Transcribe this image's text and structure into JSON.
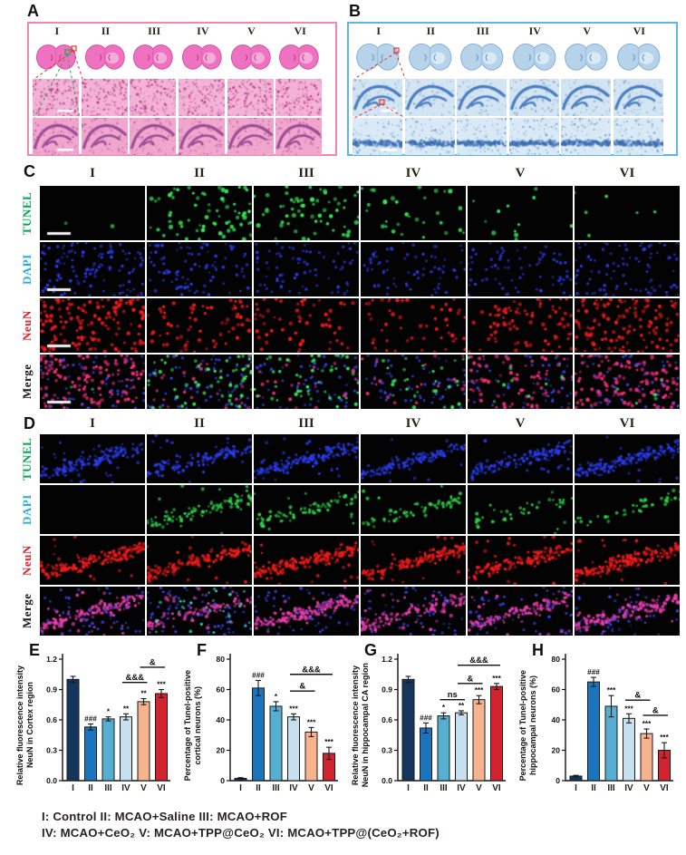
{
  "panels": {
    "a": {
      "label": "A",
      "columns": [
        "I",
        "II",
        "III",
        "IV",
        "V",
        "VI"
      ]
    },
    "b": {
      "label": "B",
      "columns": [
        "I",
        "II",
        "III",
        "IV",
        "V",
        "VI"
      ]
    },
    "c": {
      "label": "C",
      "columns": [
        "I",
        "II",
        "III",
        "IV",
        "V",
        "VI"
      ],
      "rows": [
        {
          "label": "TUNEL",
          "label_color": "#00A651",
          "layers": [
            {
              "color": "#38e65a",
              "pattern": "scatter",
              "rmin": 1.4,
              "rmax": 2.6,
              "counts": [
                2,
                70,
                60,
                30,
                12,
                6
              ]
            }
          ]
        },
        {
          "label": "DAPI",
          "label_color": "#29ABE2",
          "layers": [
            {
              "color": "#2a3cf0",
              "pattern": "scatter",
              "rmin": 1.1,
              "rmax": 2.0,
              "counts": [
                120,
                90,
                75,
                70,
                75,
                90
              ]
            }
          ]
        },
        {
          "label": "NeuN",
          "label_color": "#ED1C24",
          "layers": [
            {
              "color": "#f21b1b",
              "pattern": "scatter",
              "rmin": 1.4,
              "rmax": 2.4,
              "counts": [
                140,
                70,
                55,
                50,
                85,
                130
              ]
            }
          ]
        },
        {
          "label": "Merge",
          "label_color": "#1a1a1a",
          "layers": [
            {
              "color": "#f0307c",
              "pattern": "scatter",
              "rmin": 1.4,
              "rmax": 2.4,
              "counts": [
                130,
                25,
                20,
                18,
                75,
                120
              ]
            },
            {
              "color": "#3a46f5",
              "pattern": "scatter",
              "rmin": 1.1,
              "rmax": 1.9,
              "counts": [
                50,
                70,
                60,
                55,
                50,
                45
              ]
            },
            {
              "color": "#38e65a",
              "pattern": "scatter",
              "rmin": 1.3,
              "rmax": 2.2,
              "counts": [
                2,
                55,
                48,
                28,
                10,
                5
              ]
            }
          ]
        }
      ]
    },
    "d": {
      "label": "D",
      "columns": [
        "I",
        "II",
        "III",
        "IV",
        "V",
        "VI"
      ],
      "rows": [
        {
          "label": "TUNEL",
          "label_color": "#00A651",
          "layers": [
            {
              "color": "#2a3cf0",
              "pattern": "band",
              "rmin": 1.1,
              "rmax": 2.0,
              "counts": [
                160,
                130,
                170,
                130,
                140,
                170
              ]
            }
          ]
        },
        {
          "label": "DAPI",
          "label_color": "#29ABE2",
          "layers": [
            {
              "color": "#2fd24a",
              "pattern": "band",
              "rmin": 1.2,
              "rmax": 2.2,
              "counts": [
                0,
                100,
                80,
                65,
                45,
                40
              ]
            }
          ]
        },
        {
          "label": "NeuN",
          "label_color": "#ED1C24",
          "layers": [
            {
              "color": "#f21b1b",
              "pattern": "band",
              "rmin": 1.2,
              "rmax": 2.2,
              "counts": [
                170,
                140,
                170,
                140,
                140,
                170
              ]
            }
          ]
        },
        {
          "label": "Merge",
          "label_color": "#1a1a1a",
          "layers": [
            {
              "color": "#e93fb0",
              "pattern": "band",
              "rmin": 1.2,
              "rmax": 2.2,
              "counts": [
                150,
                90,
                140,
                120,
                120,
                150
              ]
            },
            {
              "color": "#3a46f5",
              "pattern": "scatter",
              "rmin": 1.0,
              "rmax": 1.8,
              "counts": [
                55,
                65,
                50,
                50,
                50,
                50
              ]
            },
            {
              "color": "#35e0c8",
              "pattern": "scatter",
              "rmin": 1.2,
              "rmax": 2.0,
              "counts": [
                0,
                28,
                0,
                0,
                0,
                0
              ]
            }
          ]
        }
      ]
    }
  },
  "legend": {
    "line1": "I: Control  II: MCAO+Saline  III: MCAO+ROF",
    "line2": "IV: MCAO+CeO₂  V: MCAO+TPP@CeO₂  VI: MCAO+TPP@(CeO₂+ROF)"
  },
  "colors": {
    "group_bars": [
      "#14365c",
      "#1b75bc",
      "#56aed1",
      "#c6e0ef",
      "#f7b28e",
      "#d2232e"
    ],
    "panel_a_border": "#F285B2",
    "panel_b_border": "#5EB6E4",
    "hne_pink": "#f06ab8",
    "nissl_blue": "#b3d2ea"
  },
  "chart_data": [
    {
      "id": "E",
      "type": "bar",
      "categories": [
        "I",
        "II",
        "III",
        "IV",
        "V",
        "VI"
      ],
      "values": [
        1.0,
        0.53,
        0.61,
        0.63,
        0.78,
        0.86
      ],
      "errors": [
        0.03,
        0.03,
        0.02,
        0.03,
        0.03,
        0.04
      ],
      "annotations": [
        "",
        "###",
        "*",
        "**",
        "**",
        "***"
      ],
      "sig_lines": [
        {
          "from": "IV",
          "to": "V",
          "label": "&&&",
          "y": 0.97
        },
        {
          "from": "V",
          "to": "VI",
          "label": "&",
          "y": 1.12
        }
      ],
      "ylabel": [
        "Relative fluorescence intensity",
        "NeuN in Cortex region"
      ],
      "ylim": [
        0,
        1.2
      ],
      "yticks": [
        0,
        0.3,
        0.6,
        0.9,
        1.2
      ],
      "ytick_labels": [
        "0.0",
        "0.3",
        "0.6",
        "0.9",
        "1.2"
      ]
    },
    {
      "id": "F",
      "type": "bar",
      "categories": [
        "I",
        "II",
        "III",
        "IV",
        "V",
        "VI"
      ],
      "values": [
        1.5,
        61,
        49,
        42,
        32,
        18
      ],
      "errors": [
        0.5,
        5,
        3,
        2,
        3,
        4
      ],
      "annotations": [
        "",
        "###",
        "*",
        "***",
        "***",
        "***"
      ],
      "sig_lines": [
        {
          "from": "IV",
          "to": "V",
          "label": "&",
          "y": 59
        },
        {
          "from": "IV",
          "to": "VI",
          "label": "&&&",
          "y": 70
        }
      ],
      "ylabel": [
        "Percentage of Tunel-positive",
        "cortical neurons (%)"
      ],
      "ylim": [
        0,
        80
      ],
      "yticks": [
        0,
        20,
        40,
        60,
        80
      ],
      "ytick_labels": [
        "0",
        "20",
        "40",
        "60",
        "80"
      ]
    },
    {
      "id": "G",
      "type": "bar",
      "categories": [
        "I",
        "II",
        "III",
        "IV",
        "V",
        "VI"
      ],
      "values": [
        1.0,
        0.52,
        0.64,
        0.67,
        0.8,
        0.93
      ],
      "errors": [
        0.03,
        0.05,
        0.03,
        0.02,
        0.04,
        0.03
      ],
      "annotations": [
        "",
        "###",
        "*",
        "**",
        "***",
        "***"
      ],
      "sig_lines": [
        {
          "from": "III",
          "to": "IV",
          "label": "ns",
          "y": 0.8
        },
        {
          "from": "IV",
          "to": "V",
          "label": "&",
          "y": 0.96
        },
        {
          "from": "IV",
          "to": "VI",
          "label": "&&&",
          "y": 1.14
        }
      ],
      "ylabel": [
        "Relative fluorescence intensity",
        "NeuN in hippocampal CA region"
      ],
      "ylim": [
        0,
        1.2
      ],
      "yticks": [
        0,
        0.3,
        0.6,
        0.9,
        1.2
      ],
      "ytick_labels": [
        "0.0",
        "0.3",
        "0.6",
        "0.9",
        "1.2"
      ]
    },
    {
      "id": "H",
      "type": "bar",
      "categories": [
        "I",
        "II",
        "III",
        "IV",
        "V",
        "VI"
      ],
      "values": [
        3,
        65,
        49,
        41,
        31,
        20
      ],
      "errors": [
        0.5,
        3,
        7,
        3,
        3,
        5
      ],
      "annotations": [
        "",
        "###",
        "***",
        "***",
        "***",
        "***"
      ],
      "sig_lines": [
        {
          "from": "IV",
          "to": "V",
          "label": "&",
          "y": 53
        },
        {
          "from": "V",
          "to": "VI",
          "label": "&",
          "y": 43
        }
      ],
      "ylabel": [
        "Percentage of Tunel-positive",
        "hippocampal neurons (%)"
      ],
      "ylim": [
        0,
        80
      ],
      "yticks": [
        0,
        20,
        40,
        60,
        80
      ],
      "ytick_labels": [
        "0",
        "20",
        "40",
        "60",
        "80"
      ]
    }
  ]
}
